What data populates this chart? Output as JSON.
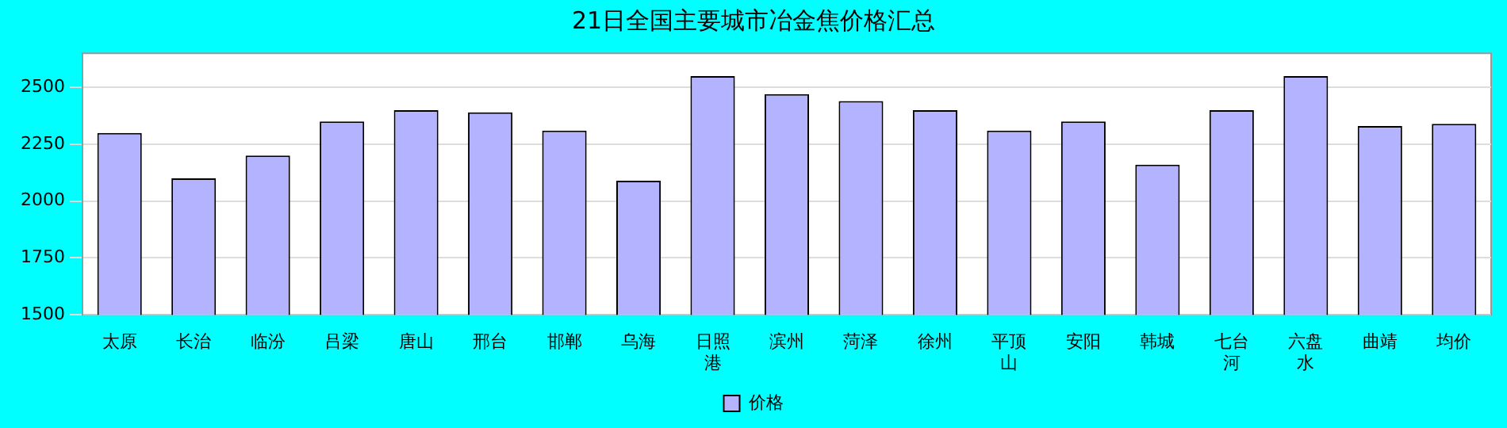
{
  "chart_data": {
    "type": "bar",
    "title": "21日全国主要城市冶金焦价格汇总",
    "categories": [
      "太原",
      "长治",
      "临汾",
      "吕梁",
      "唐山",
      "邢台",
      "邯郸",
      "乌海",
      "日照港",
      "滨州",
      "菏泽",
      "徐州",
      "平顶山",
      "安阳",
      "韩城",
      "七台河",
      "六盘水",
      "曲靖",
      "均价"
    ],
    "series": [
      {
        "name": "价格",
        "color": "#b3b3ff",
        "values": [
          2300,
          2100,
          2200,
          2350,
          2400,
          2390,
          2310,
          2090,
          2550,
          2470,
          2440,
          2400,
          2310,
          2350,
          2160,
          2400,
          2550,
          2330,
          2340
        ]
      }
    ],
    "ylim": [
      1500,
      2650
    ],
    "yticks": [
      1500,
      1750,
      2000,
      2250,
      2500
    ],
    "grid": "y",
    "legend": "bottom"
  }
}
